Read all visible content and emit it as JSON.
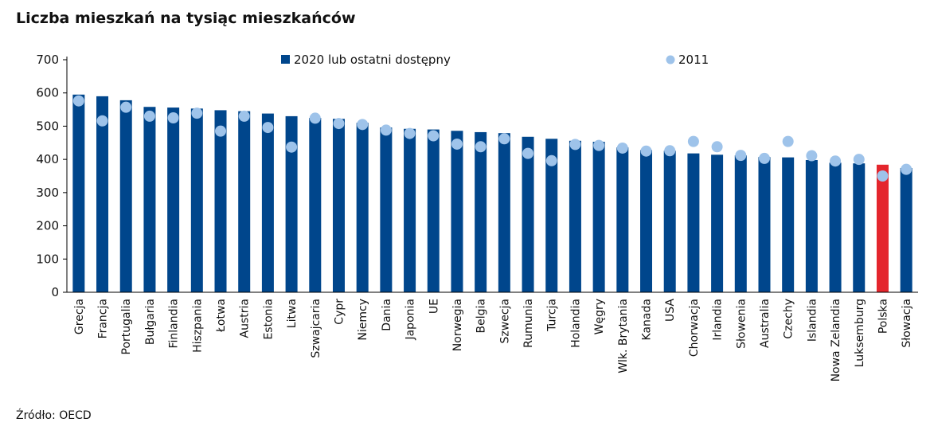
{
  "title": "Liczba mieszkań na tysiąc mieszkańców",
  "source": "Źródło: OECD",
  "colors": {
    "bar": "#00468c",
    "highlight": "#e4262d",
    "dot": "#9ec3ea",
    "axis": "#000000"
  },
  "chart_data": {
    "type": "bar",
    "title": "Liczba mieszkań na tysiąc mieszkańców",
    "xlabel": "",
    "ylabel": "",
    "ylim": [
      0,
      700
    ],
    "yticks": [
      0,
      100,
      200,
      300,
      400,
      500,
      600,
      700
    ],
    "grid": false,
    "legend_position": "top",
    "highlight_category": "Polska",
    "categories": [
      "Grecja",
      "Francja",
      "Portugalia",
      "Bułgaria",
      "Finlandia",
      "Hiszpania",
      "Łotwa",
      "Austria",
      "Estonia",
      "Litwa",
      "Szwajcaria",
      "Cypr",
      "Niemcy",
      "Dania",
      "Japonia",
      "UE",
      "Norwegia",
      "Belgia",
      "Szwecja",
      "Rumunia",
      "Turcja",
      "Holandia",
      "Węgry",
      "Wlk. Brytania",
      "Kanada",
      "USA",
      "Chorwacja",
      "Irlandia",
      "Słowenia",
      "Australia",
      "Czechy",
      "Islandia",
      "Nowa Zelandia",
      "Luksemburg",
      "Polska",
      "Słowacja"
    ],
    "series": [
      {
        "name": "2020 lub ostatni dostępny",
        "kind": "bar",
        "values": [
          595,
          590,
          578,
          558,
          556,
          553,
          548,
          545,
          538,
          530,
          525,
          522,
          510,
          496,
          492,
          490,
          486,
          482,
          479,
          468,
          462,
          456,
          453,
          436,
          428,
          426,
          418,
          414,
          412,
          407,
          406,
          398,
          390,
          388,
          384,
          374
        ]
      },
      {
        "name": "2011",
        "kind": "dot",
        "values": [
          576,
          516,
          557,
          530,
          525,
          539,
          485,
          530,
          496,
          437,
          524,
          508,
          505,
          488,
          478,
          471,
          446,
          438,
          462,
          418,
          396,
          445,
          442,
          434,
          425,
          426,
          454,
          438,
          412,
          403,
          454,
          411,
          395,
          400,
          350,
          370
        ]
      }
    ]
  }
}
